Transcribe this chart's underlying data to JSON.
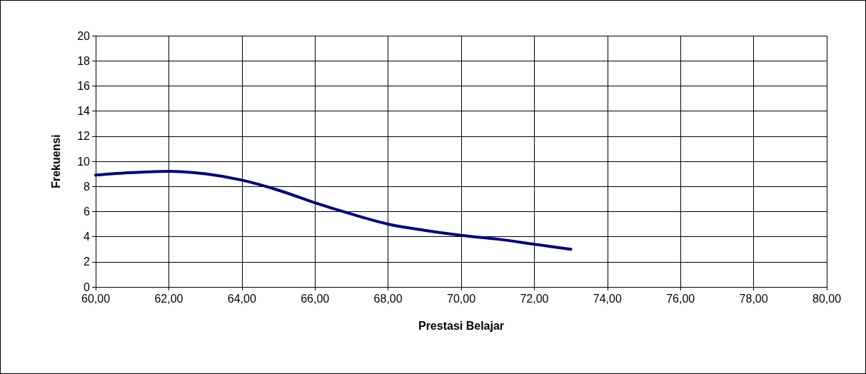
{
  "chart_data": {
    "type": "line",
    "xlabel": "Prestasi Belajar",
    "ylabel": "Frekuensi",
    "x": [
      60,
      61,
      62,
      63,
      64,
      65,
      66,
      67,
      68,
      69,
      70,
      71,
      72,
      73
    ],
    "series": [
      {
        "color": "#000080",
        "values": [
          8.9,
          9.1,
          9.2,
          9.0,
          8.5,
          7.7,
          6.7,
          5.8,
          5.0,
          4.5,
          4.1,
          3.8,
          3.4,
          3.0
        ]
      }
    ],
    "xlim": [
      60,
      80
    ],
    "xticks": [
      {
        "value": 60,
        "label": "60,00"
      },
      {
        "value": 62,
        "label": "62,00"
      },
      {
        "value": 64,
        "label": "64,00"
      },
      {
        "value": 66,
        "label": "66,00"
      },
      {
        "value": 68,
        "label": "68,00"
      },
      {
        "value": 70,
        "label": "70,00"
      },
      {
        "value": 72,
        "label": "72,00"
      },
      {
        "value": 74,
        "label": "74,00"
      },
      {
        "value": 76,
        "label": "76,00"
      },
      {
        "value": 78,
        "label": "78,00"
      },
      {
        "value": 80,
        "label": "80,00"
      }
    ],
    "ylim": [
      0,
      20
    ],
    "yticks": [
      0,
      2,
      4,
      6,
      8,
      10,
      12,
      14,
      16,
      18,
      20
    ],
    "grid": true,
    "marker": "none",
    "line_style": "solid"
  }
}
